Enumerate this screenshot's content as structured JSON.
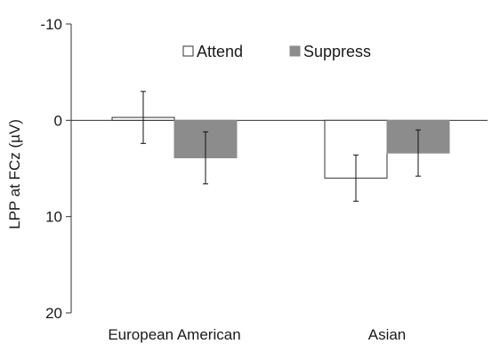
{
  "chart_data": {
    "type": "bar",
    "title": "",
    "xlabel": "",
    "ylabel": "LPP at FCz (µV)",
    "y_inverted": true,
    "ylim": [
      -10,
      20
    ],
    "yticks": [
      -10,
      0,
      10,
      20
    ],
    "ytick_labels": [
      "-10",
      "0",
      "10",
      "20"
    ],
    "categories": [
      "European American",
      "Asian"
    ],
    "legend_position": "top",
    "grid": false,
    "series": [
      {
        "name": "Attend",
        "fill": "#ffffff",
        "stroke": "#333333",
        "values": [
          -0.3,
          6.0
        ],
        "error": [
          2.7,
          2.4
        ]
      },
      {
        "name": "Suppress",
        "fill": "#8c8c8c",
        "stroke": "#8c8c8c",
        "values": [
          3.9,
          3.4
        ],
        "error": [
          2.7,
          2.4
        ]
      }
    ]
  }
}
